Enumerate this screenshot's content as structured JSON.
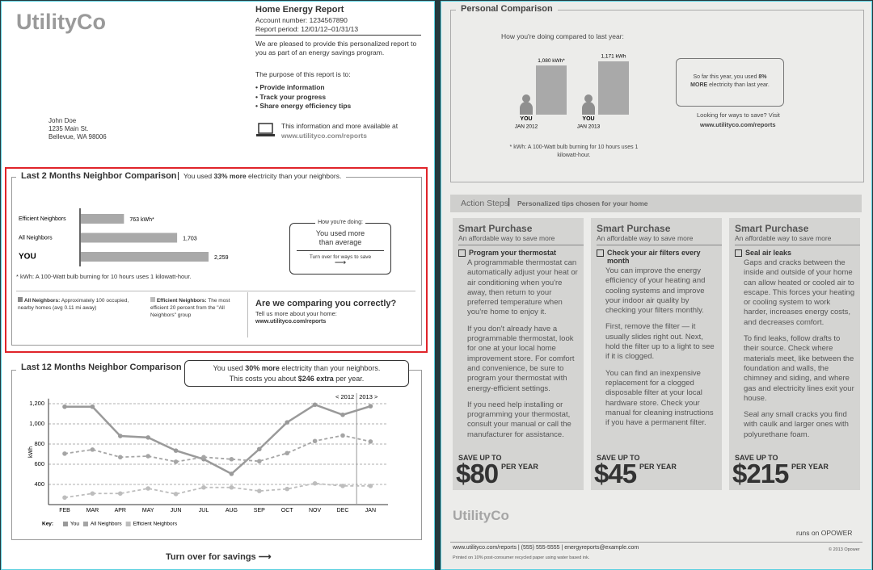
{
  "report": {
    "logo": "UtilityCo",
    "title": "Home Energy Report",
    "account": "Account number: 1234567890",
    "period": "Report period: 12/01/12–01/31/13",
    "intro": "We are pleased to provide this personalized report to you as part of an energy savings program.",
    "purpose": "The purpose of this report is to:",
    "purposes": [
      "Provide information",
      "Track your progress",
      "Share energy efficiency tips"
    ],
    "address": [
      "John Doe",
      "1235 Main St.",
      "Bellevue, WA 98006"
    ],
    "online": "This information and more available at",
    "online_url": "www.utilityco.com/reports"
  },
  "two_month": {
    "title": "Last 2 Months Neighbor Comparison",
    "summary": [
      "You used ",
      "33% more",
      " electricity than your neighbors."
    ],
    "chart": {
      "type": "bar",
      "categories": [
        "Efficient Neighbors",
        "All Neighbors",
        "YOU"
      ],
      "values": [
        763,
        1703,
        2259
      ],
      "value_labels": [
        "763 kWh*",
        "1,703",
        "2,259"
      ],
      "color": "#a9a9a9"
    },
    "footnote": "* kWh: A 100-Watt bulb burning for 10 hours uses 1 kilowatt-hour.",
    "doing": {
      "label": "How you're doing:",
      "result": "You used more than average",
      "turn": "Turn over for ways to save"
    },
    "legend": [
      {
        "name": "All Neighbors:",
        "text": "Approximately 100 occupied, nearby homes (avg 0.11 mi away)"
      },
      {
        "name": "Efficient Neighbors:",
        "text": "The most efficient 20 percent from the \"All Neighbors\" group"
      }
    ],
    "question": {
      "title": "Are we comparing you correctly?",
      "text": "Tell us more about your home:",
      "url": "www.utilityco.com/reports"
    }
  },
  "twelve_month": {
    "title": "Last 12 Months Neighbor Comparison",
    "callout": [
      "You used ",
      "30% more",
      " electricity than your neighbors."
    ],
    "callout2": [
      "This costs you about ",
      "$246 extra",
      " per year."
    ],
    "chart": {
      "type": "line",
      "categories": [
        "FEB",
        "MAR",
        "APR",
        "MAY",
        "JUN",
        "JUL",
        "AUG",
        "SEP",
        "OCT",
        "NOV",
        "DEC",
        "JAN"
      ],
      "ylabel": "kWh",
      "ylim": [
        200,
        1250
      ],
      "yticks": [
        400,
        600,
        800,
        {
          "value": 1000,
          "label": "1,000"
        },
        {
          "value": 1200,
          "label": "1,200"
        }
      ],
      "grid": true,
      "years": [
        "< 2012",
        "2013 >"
      ],
      "key": "Key:",
      "series": [
        {
          "name": "You",
          "color": "#9a9a9a",
          "values": [
            1170,
            1170,
            880,
            865,
            735,
            650,
            505,
            750,
            1015,
            1190,
            1090,
            1175
          ]
        },
        {
          "name": "All Neighbors",
          "color": "#a5a5a5",
          "values": [
            705,
            745,
            670,
            680,
            625,
            670,
            650,
            630,
            710,
            830,
            885,
            825
          ]
        },
        {
          "name": "Efficient Neighbors",
          "color": "#bdbdbd",
          "values": [
            270,
            310,
            310,
            360,
            305,
            370,
            370,
            335,
            355,
            410,
            385,
            385
          ]
        }
      ]
    },
    "turn_over": "Turn over for savings"
  },
  "personal": {
    "title": "Personal Comparison",
    "subtitle": "How you're doing compared to last year:",
    "chart": {
      "type": "bar",
      "categories": [
        "YOU",
        "YOU"
      ],
      "dates": [
        "JAN 2012",
        "JAN 2013"
      ],
      "values": [
        1080,
        1171
      ],
      "value_labels": [
        "1,080 kWh*",
        "1,171 kWh"
      ],
      "color": "#a9a9a9"
    },
    "footnote": "* kWh: A 100-Watt bulb burning for 10 hours uses 1 kilowatt-hour.",
    "summary": [
      "So far this year, you used ",
      "8% MORE",
      " electricity than last year."
    ],
    "visit": "Looking for ways to save? Visit",
    "url": "www.utilityco.com/reports"
  },
  "action": {
    "title": "Action Steps",
    "subtitle": "Personalized tips chosen for your home",
    "cards": [
      {
        "heading": "Smart Purchase",
        "sub": "An affordable way to save more",
        "tip": "Program your thermostat",
        "paragraphs": [
          "A programmable thermostat can automatically adjust your heat or air conditioning when you're away, then return to your preferred temperature when you're home to enjoy it.",
          "If you don't already have a programmable thermostat, look for one at your local home improvement store. For comfort and convenience, be sure to program your thermostat with energy-efficient settings.",
          "If you need help installing or programming your thermostat, consult your manual or call the manufacturer for assistance."
        ],
        "save": "SAVE UP TO",
        "amount": "$80",
        "per": "PER YEAR"
      },
      {
        "heading": "Smart Purchase",
        "sub": "An affordable way to save more",
        "tip": "Check your air filters every month",
        "paragraphs": [
          "You can improve the energy efficiency of your heating and cooling systems and improve your indoor air quality by checking your filters monthly.",
          "First, remove the filter — it usually slides right out. Next, hold the filter up to a light to see if it is clogged.",
          "You can find an inexpensive replacement for a clogged disposable filter at your local hardware store. Check your manual for cleaning instructions if you have a permanent filter."
        ],
        "save": "SAVE UP TO",
        "amount": "$45",
        "per": "PER YEAR"
      },
      {
        "heading": "Smart Purchase",
        "sub": "An affordable way to save more",
        "tip": "Seal air leaks",
        "paragraphs": [
          "Gaps and cracks between the inside and outside of your home can allow heated or cooled air to escape. This forces your heating or cooling system to work harder, increases energy costs, and decreases comfort.",
          "To find leaks, follow drafts to their source. Check where materials meet, like between the foundation and walls, the chimney and siding, and where gas and electricity lines exit your house.",
          "Seal any small cracks you find with caulk and larger ones with polyurethane foam."
        ],
        "save": "SAVE UP TO",
        "amount": "$215",
        "per": "PER YEAR"
      }
    ]
  },
  "footer": {
    "logo": "UtilityCo",
    "runs": "runs on OPOWER",
    "contact": "www.utilityco.com/reports | (555) 555-5555 | energyreports@example.com",
    "printed": "Printed on 10% post-consumer recycled paper using water based ink.",
    "copyright": "© 2013 Opower"
  }
}
